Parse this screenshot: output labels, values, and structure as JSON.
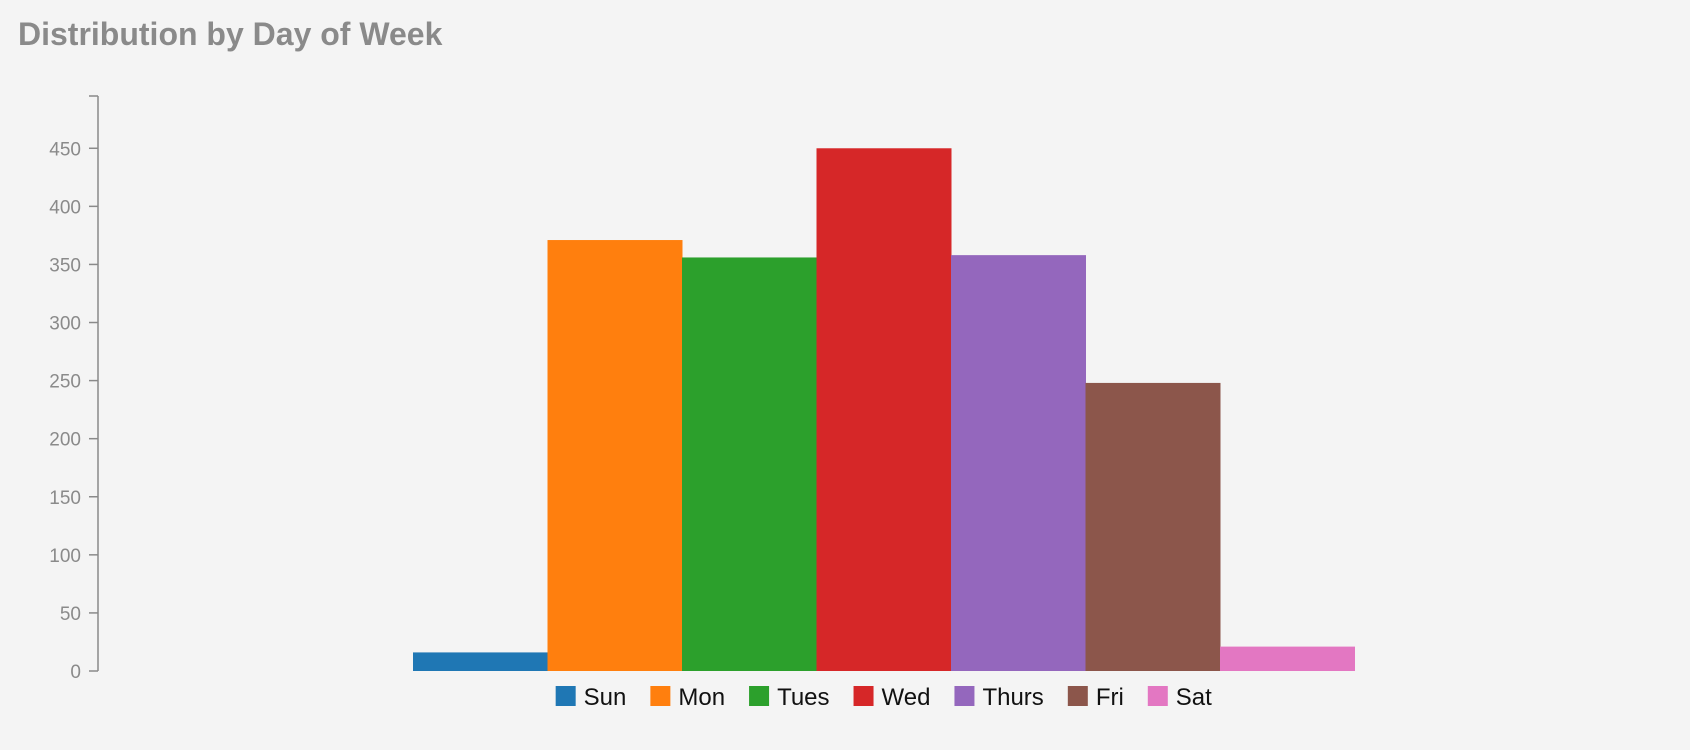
{
  "chart_data": {
    "type": "bar",
    "title": "Distribution by Day of Week",
    "xlabel": "",
    "ylabel": "",
    "categories": [
      "Sun",
      "Mon",
      "Tues",
      "Wed",
      "Thurs",
      "Fri",
      "Sat"
    ],
    "values": [
      16,
      371,
      356,
      450,
      358,
      248,
      21
    ],
    "colors": [
      "#1f77b4",
      "#ff7f0e",
      "#2ca02c",
      "#d62728",
      "#9467bd",
      "#8c564b",
      "#e377c2"
    ],
    "ylim": [
      0,
      495
    ],
    "yticks": [
      0,
      50,
      100,
      150,
      200,
      250,
      300,
      350,
      400,
      450
    ],
    "grid": false,
    "legend_position": "bottom-center"
  }
}
